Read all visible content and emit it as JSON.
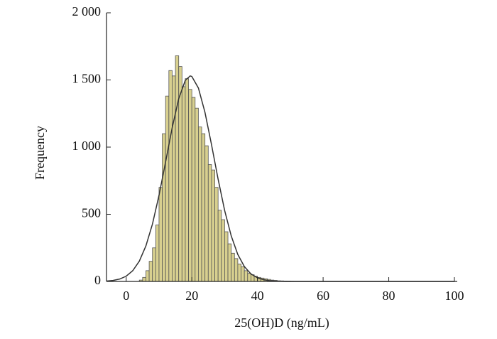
{
  "chart_data": {
    "type": "histogram",
    "xlabel": "25(OH)D (ng/mL)",
    "ylabel": "Frequency",
    "bins": [
      4,
      5,
      6,
      7,
      8,
      9,
      10,
      11,
      12,
      13,
      14,
      15,
      16,
      17,
      18,
      19,
      20,
      21,
      22,
      23,
      24,
      25,
      26,
      27,
      28,
      29,
      30,
      31,
      32,
      33,
      34,
      35,
      36,
      37,
      38,
      39,
      40,
      41,
      42,
      43,
      44,
      45,
      46,
      47,
      48,
      49,
      50,
      51
    ],
    "values": [
      10,
      30,
      80,
      150,
      250,
      420,
      700,
      1100,
      1380,
      1570,
      1530,
      1680,
      1600,
      1450,
      1510,
      1430,
      1370,
      1290,
      1150,
      1100,
      1010,
      870,
      830,
      700,
      530,
      460,
      370,
      280,
      210,
      170,
      130,
      110,
      80,
      60,
      50,
      40,
      30,
      25,
      20,
      15,
      10,
      8,
      5,
      4,
      3,
      2,
      1
    ],
    "color": "#d8d08f",
    "edge_color": "#555555",
    "curve": {
      "color": "#333333",
      "x": [
        -6,
        -4,
        -2,
        0,
        2,
        4,
        6,
        8,
        10,
        12,
        14,
        16,
        18,
        19.5,
        20,
        22,
        24,
        26,
        28,
        30,
        32,
        34,
        36,
        38,
        40,
        42,
        44,
        46,
        48,
        50,
        100
      ],
      "values": [
        2.9,
        7.4,
        17.7,
        39,
        80,
        151,
        264,
        427,
        641,
        889,
        1143,
        1360,
        1497,
        1530,
        1526,
        1440,
        1259,
        1018,
        762,
        528,
        339,
        201,
        111,
        56,
        27,
        12,
        4.7,
        1.8,
        0.6,
        0.2,
        0
      ]
    },
    "xlim": [
      -6,
      100
    ],
    "xticks": [
      0,
      20,
      40,
      60,
      80,
      100
    ],
    "ylim": [
      0,
      2000
    ],
    "yticks": [
      0,
      500,
      {
        "value": 1000,
        "label": "1 000"
      },
      {
        "value": 1500,
        "label": "1 500"
      },
      {
        "value": 2000,
        "label": "2 000"
      }
    ]
  }
}
